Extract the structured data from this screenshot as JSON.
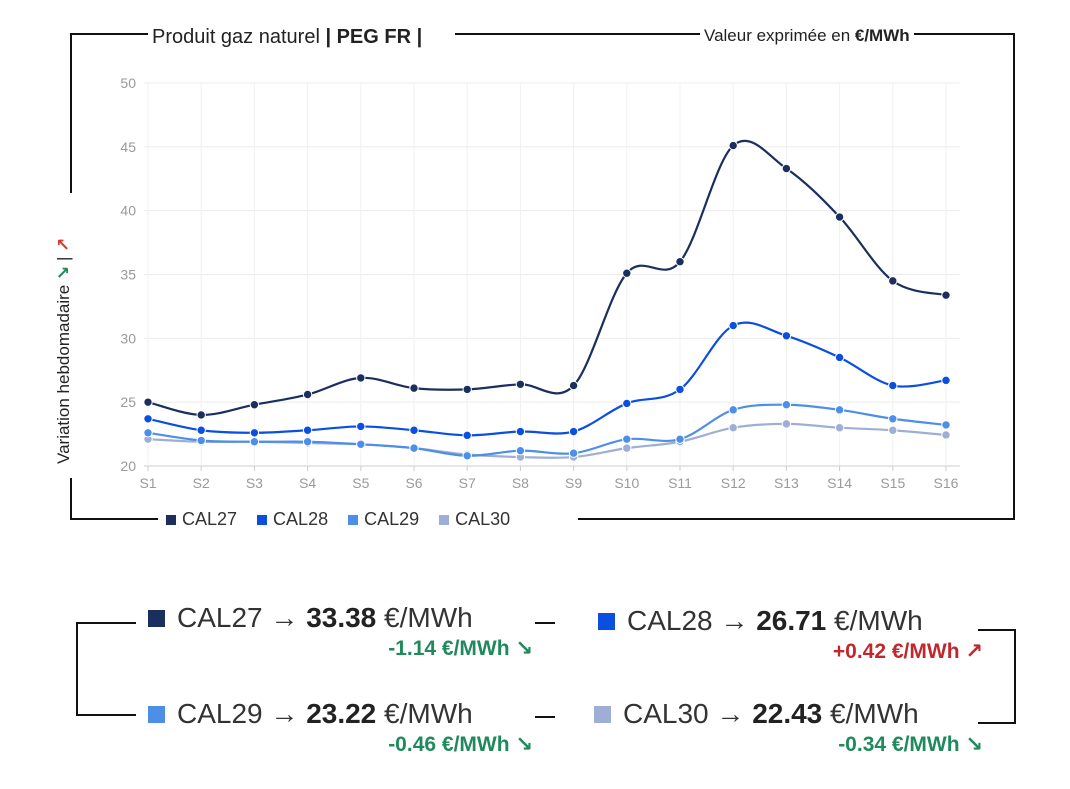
{
  "header": {
    "title_prefix": "Produit gaz naturel ",
    "title_bold": "| PEG FR |",
    "unit_prefix": "Valeur exprimée en ",
    "unit_bold": "€/MWh",
    "vertical_label": "Variation hebdomadaire",
    "vertical_arrow_down": "↘",
    "vertical_sep": "|",
    "vertical_arrow_up": "↗"
  },
  "colors": {
    "CAL27": "#1b2f5e",
    "CAL28": "#0b4fe0",
    "CAL29": "#4d8fe6",
    "CAL30": "#9eaed6",
    "negative": "#1f8a5b",
    "positive": "#c0282d"
  },
  "chart_data": {
    "type": "line",
    "categories": [
      "S1",
      "S2",
      "S3",
      "S4",
      "S5",
      "S6",
      "S7",
      "S8",
      "S9",
      "S10",
      "S11",
      "S12",
      "S13",
      "S14",
      "S15",
      "S16"
    ],
    "ylim": [
      20,
      50
    ],
    "yticks": [
      20,
      25,
      30,
      35,
      40,
      45,
      50
    ],
    "grid": true,
    "legend": "bottom-left",
    "series": [
      {
        "name": "CAL27",
        "values": [
          25.0,
          24.0,
          24.8,
          25.6,
          26.9,
          26.1,
          26.0,
          26.4,
          26.3,
          35.1,
          36.0,
          45.1,
          43.3,
          39.5,
          34.5,
          33.38
        ]
      },
      {
        "name": "CAL28",
        "values": [
          23.7,
          22.8,
          22.6,
          22.8,
          23.1,
          22.8,
          22.4,
          22.7,
          22.7,
          24.9,
          26.0,
          31.0,
          30.2,
          28.5,
          26.3,
          26.71
        ]
      },
      {
        "name": "CAL29",
        "values": [
          22.6,
          22.0,
          21.9,
          21.9,
          21.7,
          21.4,
          20.8,
          21.2,
          21.0,
          22.1,
          22.1,
          24.4,
          24.8,
          24.4,
          23.7,
          23.22
        ]
      },
      {
        "name": "CAL30",
        "values": [
          22.1,
          21.9,
          21.9,
          21.8,
          21.7,
          21.4,
          20.9,
          20.7,
          20.7,
          21.4,
          21.9,
          23.0,
          23.3,
          23.0,
          22.8,
          22.43
        ]
      }
    ]
  },
  "summary": {
    "arrow": "→",
    "unit": "€/MWh",
    "cards": [
      {
        "name": "CAL27",
        "value": "33.38",
        "delta": "-1.14 €/MWh",
        "delta_arrow": "↘"
      },
      {
        "name": "CAL28",
        "value": "26.71",
        "delta": "+0.42 €/MWh",
        "delta_arrow": "↗"
      },
      {
        "name": "CAL29",
        "value": "23.22",
        "delta": "-0.46 €/MWh",
        "delta_arrow": "↘"
      },
      {
        "name": "CAL30",
        "value": "22.43",
        "delta": "-0.34 €/MWh",
        "delta_arrow": "↘"
      }
    ]
  }
}
